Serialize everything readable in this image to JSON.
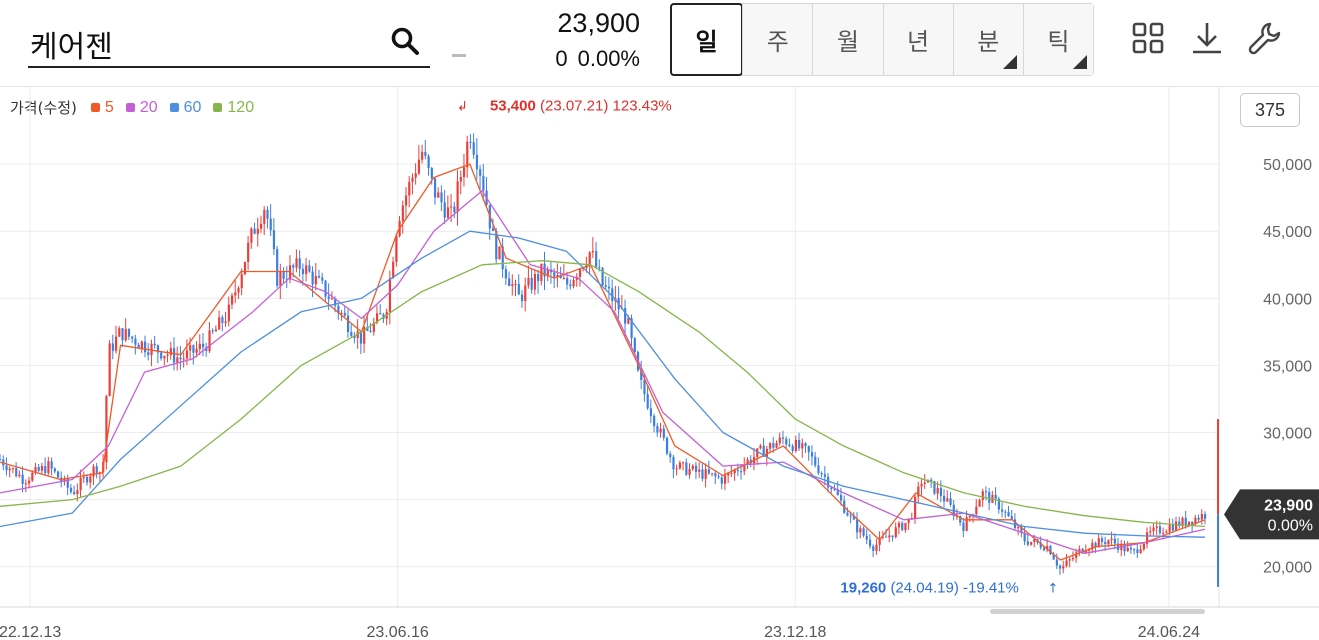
{
  "search": {
    "value": "케어젠"
  },
  "quote": {
    "price": "23,900",
    "change": "0",
    "change_pct": "0.00%"
  },
  "period_tabs": [
    {
      "label": "일",
      "active": true,
      "has_menu": false
    },
    {
      "label": "주",
      "active": false,
      "has_menu": false
    },
    {
      "label": "월",
      "active": false,
      "has_menu": false
    },
    {
      "label": "년",
      "active": false,
      "has_menu": false
    },
    {
      "label": "분",
      "active": false,
      "has_menu": true
    },
    {
      "label": "틱",
      "active": false,
      "has_menu": true
    }
  ],
  "tools": [
    "grid-layout-icon",
    "download-icon",
    "wrench-icon"
  ],
  "legend": {
    "title": "가격(수정)",
    "items": [
      {
        "label": "5",
        "color": "#f05a28"
      },
      {
        "label": "20",
        "color": "#c55fd6"
      },
      {
        "label": "60",
        "color": "#4d8fe0"
      },
      {
        "label": "120",
        "color": "#86b64a"
      }
    ]
  },
  "candle_count": "375",
  "chart_data": {
    "type": "candlestick",
    "y_range": [
      17000,
      55000
    ],
    "y_ticks": [
      {
        "value": 20000,
        "label": "20,000"
      },
      {
        "value": 25000,
        "label": ""
      },
      {
        "value": 30000,
        "label": "30,000"
      },
      {
        "value": 35000,
        "label": "35,000"
      },
      {
        "value": 40000,
        "label": "40,000"
      },
      {
        "value": 45000,
        "label": "45,000"
      },
      {
        "value": 50000,
        "label": "50,000"
      }
    ],
    "x_ticks": [
      {
        "pos": 0.025,
        "label": "22.12.13"
      },
      {
        "pos": 0.33,
        "label": "23.06.16"
      },
      {
        "pos": 0.66,
        "label": "23.12.18"
      },
      {
        "pos": 0.97,
        "label": "24.06.24"
      }
    ],
    "close_path": [
      [
        0.0,
        28000
      ],
      [
        0.02,
        26500
      ],
      [
        0.04,
        27500
      ],
      [
        0.06,
        25500
      ],
      [
        0.08,
        27500
      ],
      [
        0.085,
        26800
      ],
      [
        0.09,
        36000
      ],
      [
        0.1,
        37500
      ],
      [
        0.12,
        36500
      ],
      [
        0.15,
        35500
      ],
      [
        0.17,
        36500
      ],
      [
        0.19,
        39000
      ],
      [
        0.21,
        45000
      ],
      [
        0.22,
        47000
      ],
      [
        0.23,
        41500
      ],
      [
        0.25,
        42500
      ],
      [
        0.27,
        40500
      ],
      [
        0.29,
        38000
      ],
      [
        0.3,
        37000
      ],
      [
        0.32,
        39000
      ],
      [
        0.33,
        46000
      ],
      [
        0.35,
        51000
      ],
      [
        0.36,
        48000
      ],
      [
        0.375,
        46000
      ],
      [
        0.39,
        52500
      ],
      [
        0.4,
        49000
      ],
      [
        0.41,
        44000
      ],
      [
        0.43,
        40000
      ],
      [
        0.45,
        42000
      ],
      [
        0.47,
        41000
      ],
      [
        0.49,
        43500
      ],
      [
        0.5,
        41000
      ],
      [
        0.52,
        38500
      ],
      [
        0.53,
        34000
      ],
      [
        0.545,
        30500
      ],
      [
        0.56,
        27500
      ],
      [
        0.58,
        27000
      ],
      [
        0.6,
        26500
      ],
      [
        0.615,
        27500
      ],
      [
        0.63,
        28500
      ],
      [
        0.65,
        29500
      ],
      [
        0.67,
        28500
      ],
      [
        0.69,
        26000
      ],
      [
        0.71,
        23000
      ],
      [
        0.725,
        21500
      ],
      [
        0.74,
        22500
      ],
      [
        0.755,
        23500
      ],
      [
        0.765,
        26500
      ],
      [
        0.78,
        25500
      ],
      [
        0.8,
        23000
      ],
      [
        0.815,
        25500
      ],
      [
        0.83,
        24500
      ],
      [
        0.85,
        22000
      ],
      [
        0.87,
        21500
      ],
      [
        0.88,
        19800
      ],
      [
        0.9,
        21500
      ],
      [
        0.92,
        22000
      ],
      [
        0.94,
        21000
      ],
      [
        0.955,
        22500
      ],
      [
        0.97,
        23000
      ],
      [
        0.985,
        23400
      ],
      [
        1.0,
        23900
      ]
    ],
    "series": [
      {
        "name": "5",
        "color": "#f05a28",
        "points": [
          [
            0.0,
            27800
          ],
          [
            0.05,
            26500
          ],
          [
            0.085,
            27000
          ],
          [
            0.1,
            36500
          ],
          [
            0.15,
            35800
          ],
          [
            0.2,
            42000
          ],
          [
            0.24,
            42000
          ],
          [
            0.3,
            37500
          ],
          [
            0.33,
            45000
          ],
          [
            0.36,
            49000
          ],
          [
            0.39,
            50000
          ],
          [
            0.42,
            43000
          ],
          [
            0.46,
            41500
          ],
          [
            0.49,
            42500
          ],
          [
            0.53,
            35000
          ],
          [
            0.56,
            29000
          ],
          [
            0.6,
            26800
          ],
          [
            0.65,
            29000
          ],
          [
            0.7,
            24500
          ],
          [
            0.73,
            22000
          ],
          [
            0.76,
            25500
          ],
          [
            0.8,
            23500
          ],
          [
            0.84,
            23500
          ],
          [
            0.88,
            20500
          ],
          [
            0.91,
            21500
          ],
          [
            0.95,
            21800
          ],
          [
            1.0,
            23500
          ]
        ]
      },
      {
        "name": "20",
        "color": "#c55fd6",
        "points": [
          [
            0.0,
            25500
          ],
          [
            0.06,
            26500
          ],
          [
            0.09,
            29000
          ],
          [
            0.12,
            34500
          ],
          [
            0.16,
            35500
          ],
          [
            0.21,
            39000
          ],
          [
            0.24,
            41500
          ],
          [
            0.27,
            40500
          ],
          [
            0.3,
            38500
          ],
          [
            0.33,
            41000
          ],
          [
            0.36,
            45000
          ],
          [
            0.4,
            48000
          ],
          [
            0.44,
            42500
          ],
          [
            0.48,
            41500
          ],
          [
            0.51,
            39000
          ],
          [
            0.55,
            31500
          ],
          [
            0.6,
            27500
          ],
          [
            0.65,
            27800
          ],
          [
            0.7,
            25500
          ],
          [
            0.75,
            23500
          ],
          [
            0.8,
            24000
          ],
          [
            0.85,
            22500
          ],
          [
            0.9,
            21000
          ],
          [
            0.95,
            21800
          ],
          [
            1.0,
            22800
          ]
        ]
      },
      {
        "name": "60",
        "color": "#4d8fe0",
        "points": [
          [
            0.0,
            23000
          ],
          [
            0.06,
            24000
          ],
          [
            0.1,
            28000
          ],
          [
            0.15,
            32000
          ],
          [
            0.2,
            36000
          ],
          [
            0.25,
            39000
          ],
          [
            0.3,
            40000
          ],
          [
            0.35,
            43000
          ],
          [
            0.39,
            45000
          ],
          [
            0.43,
            44500
          ],
          [
            0.47,
            43500
          ],
          [
            0.51,
            40000
          ],
          [
            0.56,
            34000
          ],
          [
            0.6,
            30000
          ],
          [
            0.65,
            27500
          ],
          [
            0.7,
            26000
          ],
          [
            0.75,
            25000
          ],
          [
            0.8,
            24000
          ],
          [
            0.85,
            23000
          ],
          [
            0.9,
            22500
          ],
          [
            0.95,
            22300
          ],
          [
            1.0,
            22200
          ]
        ]
      },
      {
        "name": "120",
        "color": "#86b64a",
        "points": [
          [
            0.0,
            24500
          ],
          [
            0.06,
            25000
          ],
          [
            0.1,
            26000
          ],
          [
            0.15,
            27500
          ],
          [
            0.2,
            31000
          ],
          [
            0.25,
            35000
          ],
          [
            0.3,
            37500
          ],
          [
            0.35,
            40500
          ],
          [
            0.4,
            42500
          ],
          [
            0.45,
            42800
          ],
          [
            0.49,
            42500
          ],
          [
            0.53,
            40500
          ],
          [
            0.58,
            37500
          ],
          [
            0.62,
            34500
          ],
          [
            0.66,
            31000
          ],
          [
            0.7,
            29000
          ],
          [
            0.75,
            27000
          ],
          [
            0.8,
            25500
          ],
          [
            0.85,
            24500
          ],
          [
            0.9,
            23800
          ],
          [
            0.95,
            23300
          ],
          [
            1.0,
            23000
          ]
        ]
      }
    ],
    "max_annotation": {
      "pos": 0.39,
      "value": 53400,
      "label_value": "53,400",
      "label_detail": "(23.07.21) 123.43%"
    },
    "min_annotation": {
      "pos": 0.88,
      "value": 19260,
      "label_value": "19,260",
      "label_detail": "(24.04.19) -19.41%"
    },
    "current_price": {
      "value": 23900,
      "label": "23,900",
      "pct": "0.00%"
    },
    "volume_bar": {
      "high": 31000,
      "low": 18500
    }
  }
}
